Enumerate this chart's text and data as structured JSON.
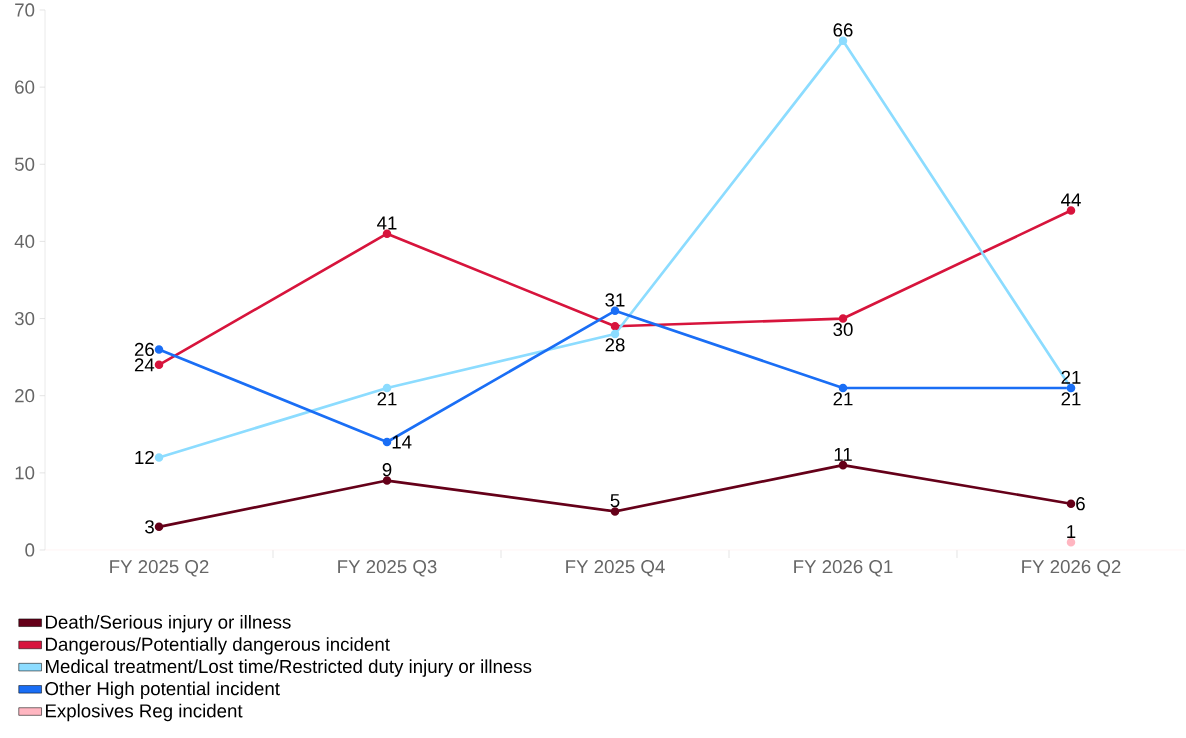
{
  "chart_data": {
    "type": "line",
    "categories": [
      "FY 2025 Q2",
      "FY 2025 Q3",
      "FY 2025 Q4",
      "FY 2026 Q1",
      "FY 2026 Q2"
    ],
    "series": [
      {
        "name": "Death/Serious injury or illness",
        "color": "#650019",
        "values": [
          3,
          9,
          5,
          11,
          6
        ],
        "value_labels": [
          "3",
          "9",
          "5",
          "11",
          "6"
        ]
      },
      {
        "name": "Dangerous/Potentially dangerous incident",
        "color": "#d7143c",
        "values": [
          24,
          41,
          29,
          30,
          44
        ],
        "value_labels": [
          "24",
          "41",
          null,
          "30",
          "44"
        ]
      },
      {
        "name": "Medical treatment/Lost time/Restricted duty injury or illness",
        "color": "#8cdcff",
        "values": [
          12,
          21,
          28,
          66,
          21
        ],
        "value_labels": [
          "12",
          "21",
          "28",
          "66",
          "21"
        ]
      },
      {
        "name": "Other High potential incident",
        "color": "#1a6ef5",
        "values": [
          26,
          14,
          31,
          21,
          21
        ],
        "value_labels": [
          "26",
          "14",
          "31",
          "21",
          "21"
        ]
      },
      {
        "name": "Explosives Reg incident",
        "color": "#ffb6c1",
        "values": [
          null,
          null,
          null,
          null,
          1
        ],
        "value_labels": [
          null,
          null,
          null,
          null,
          "1"
        ]
      }
    ],
    "ylim": [
      0,
      70
    ],
    "yticks": [
      0,
      10,
      20,
      30,
      40,
      50,
      60,
      70
    ],
    "legend": "bottom",
    "marker": "circle",
    "line_style": "solid"
  }
}
